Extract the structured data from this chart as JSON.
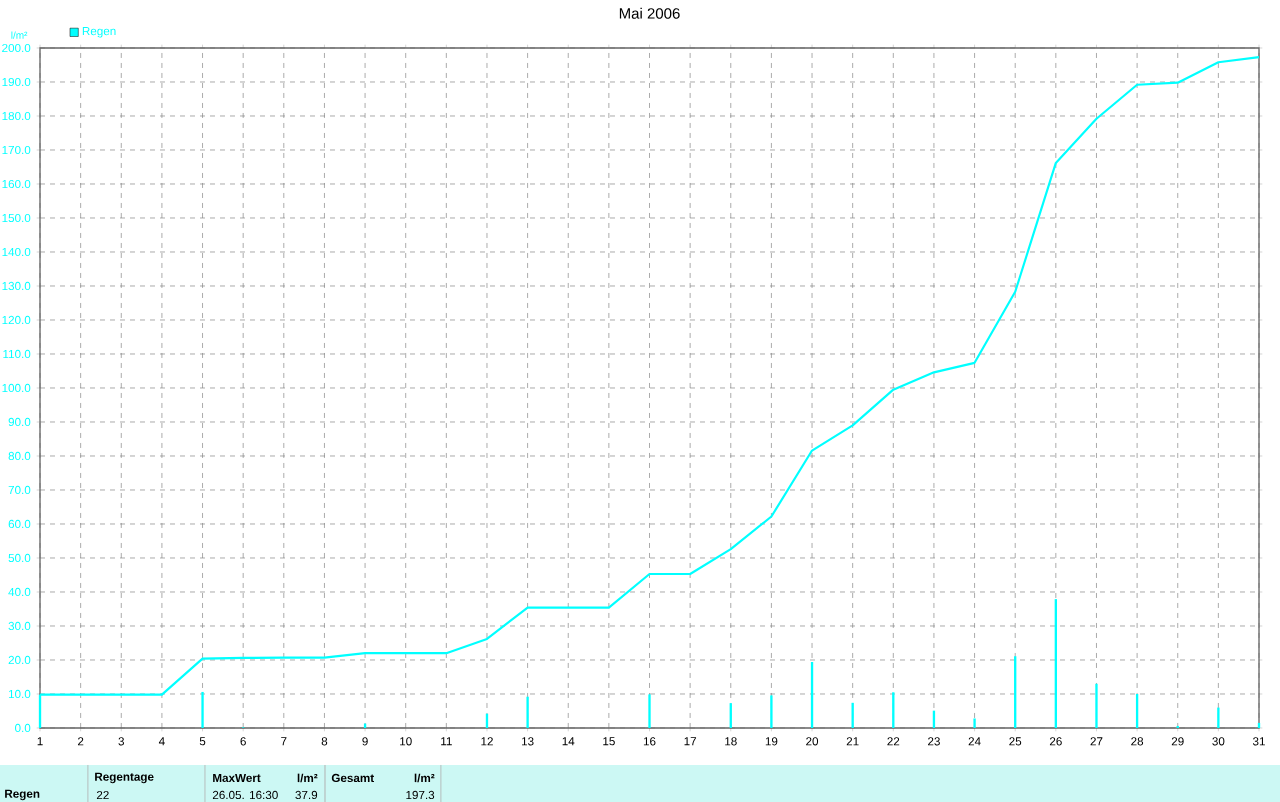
{
  "chart_data": {
    "type": "line",
    "title": "Mai 2006",
    "ylabel": "l/m²",
    "x": [
      1,
      2,
      3,
      4,
      5,
      6,
      7,
      8,
      9,
      10,
      11,
      12,
      13,
      14,
      15,
      16,
      17,
      18,
      19,
      20,
      21,
      22,
      23,
      24,
      25,
      26,
      27,
      28,
      29,
      30,
      31
    ],
    "xlim": [
      1,
      31
    ],
    "xticks": [
      1,
      2,
      3,
      4,
      5,
      6,
      7,
      8,
      9,
      10,
      11,
      12,
      13,
      14,
      15,
      16,
      17,
      18,
      19,
      20,
      21,
      22,
      23,
      24,
      25,
      26,
      27,
      28,
      29,
      30,
      31
    ],
    "ylim": [
      0,
      200
    ],
    "yticks": [
      {
        "value": 0,
        "label": "0.0"
      },
      {
        "value": 10,
        "label": "10.0"
      },
      {
        "value": 20,
        "label": "20.0"
      },
      {
        "value": 30,
        "label": "30.0"
      },
      {
        "value": 40,
        "label": "40.0"
      },
      {
        "value": 50,
        "label": "50.0"
      },
      {
        "value": 60,
        "label": "60.0"
      },
      {
        "value": 70,
        "label": "70.0"
      },
      {
        "value": 80,
        "label": "80.0"
      },
      {
        "value": 90,
        "label": "90.0"
      },
      {
        "value": 100,
        "label": "100.0"
      },
      {
        "value": 110,
        "label": "110.0"
      },
      {
        "value": 120,
        "label": "120.0"
      },
      {
        "value": 130,
        "label": "130.0"
      },
      {
        "value": 140,
        "label": "140.0"
      },
      {
        "value": 150,
        "label": "150.0"
      },
      {
        "value": 160,
        "label": "160.0"
      },
      {
        "value": 170,
        "label": "170.0"
      },
      {
        "value": 180,
        "label": "180.0"
      },
      {
        "value": 190,
        "label": "190.0"
      },
      {
        "value": 200,
        "label": "200.0"
      }
    ],
    "series": [
      {
        "type": "bar",
        "name": "Regen",
        "color": "#00ffff",
        "values": [
          9.8,
          0,
          0,
          0,
          10.6,
          0.2,
          0,
          0,
          1.3,
          0,
          0,
          4.2,
          9.2,
          0,
          0,
          9.9,
          0,
          7.3,
          9.6,
          19.4,
          7.4,
          10.5,
          5.1,
          2.8,
          21.1,
          37.9,
          13,
          10,
          0.6,
          6,
          1.5
        ]
      },
      {
        "color": "#00ffff",
        "values": [
          9.8,
          9.8,
          9.8,
          9.8,
          20.4,
          20.6,
          20.7,
          20.7,
          22,
          22,
          22,
          26.2,
          35.4,
          35.4,
          35.4,
          45.3,
          45.3,
          52.6,
          62.2,
          81.6,
          89,
          99.5,
          104.6,
          107.4,
          128.3,
          166.2,
          179.2,
          189.2,
          189.8,
          195.8,
          197.3
        ]
      }
    ],
    "grid": true,
    "legend": "top left",
    "annotations": [
      "Regen",
      "Regentage",
      "22",
      "MaxWert",
      "26.05.  16:30",
      "l/m²",
      "37.9",
      "Gesamt",
      "l/m²",
      "197.3"
    ]
  }
}
